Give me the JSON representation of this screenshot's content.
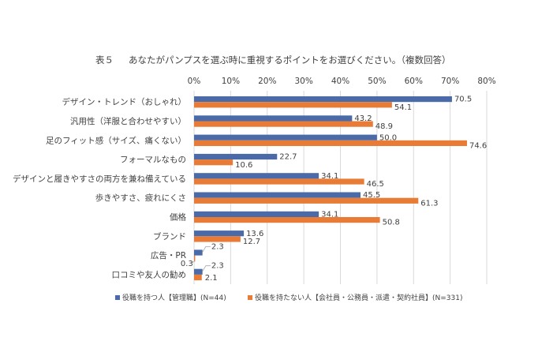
{
  "chart_data": {
    "type": "bar",
    "orientation": "horizontal",
    "title_label": "表５",
    "title": "あなたがパンプスを選ぶ時に重視するポイントをお選びください。（複数回答）",
    "categories": [
      "デザイン・トレンド（おしゃれ）",
      "汎用性（洋服と合わせやすい）",
      "足のフィット感（サイズ、痛くない）",
      "フォーマルなもの",
      "デザインと履きやすさの両方を兼ね備えている",
      "歩きやすさ、疲れにくさ",
      "価格",
      "ブランド",
      "広告・PR",
      "口コミや友人の勧め"
    ],
    "series": [
      {
        "name": "役職を持つ人【管理職】(N=44)",
        "color": "#4a6ba8",
        "values": [
          70.5,
          43.2,
          50.0,
          22.7,
          34.1,
          45.5,
          34.1,
          13.6,
          2.3,
          2.3
        ]
      },
      {
        "name": "役職を持たない人【会社員・公務員・派遣・契約社員】(N=331)",
        "color": "#e87b35",
        "values": [
          54.1,
          48.9,
          74.6,
          10.6,
          46.5,
          61.3,
          50.8,
          12.7,
          0.3,
          2.1
        ]
      }
    ],
    "xlim": [
      0,
      80
    ],
    "xticks": [
      "0%",
      "10%",
      "20%",
      "30%",
      "40%",
      "50%",
      "60%",
      "70%",
      "80%"
    ],
    "xtick_values": [
      0,
      10,
      20,
      30,
      40,
      50,
      60,
      70,
      80
    ],
    "data_labels_display": [
      [
        "70.5",
        "43.2",
        "50.0",
        "22.7",
        "34.1",
        "45.5",
        "34.1",
        "13.6",
        "2.3",
        "2.3"
      ],
      [
        "54.1",
        "48.9",
        "74.6",
        "10.6",
        "46.5",
        "61.3",
        "50.8",
        "12.7",
        "0.3",
        "2.1"
      ]
    ],
    "grid": true,
    "legend_position": "bottom"
  }
}
